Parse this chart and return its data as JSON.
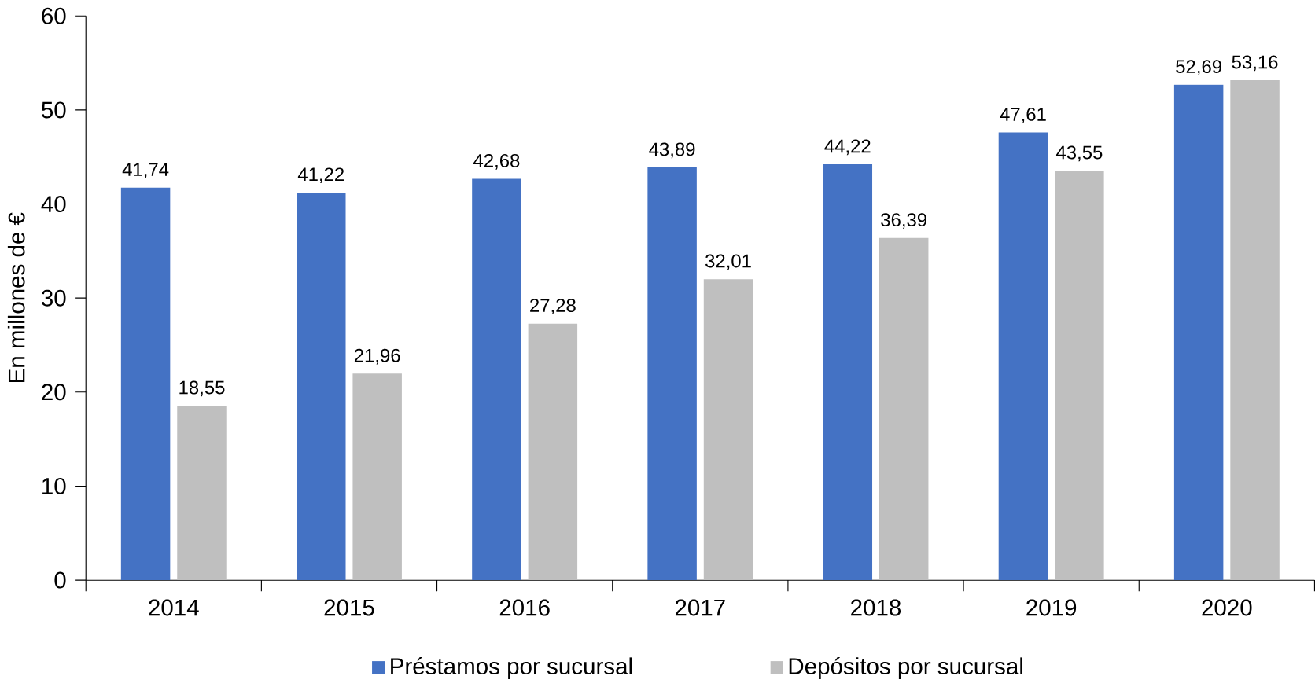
{
  "chart_data": {
    "type": "bar",
    "ylabel": "En millones de €",
    "categories": [
      "2014",
      "2015",
      "2016",
      "2017",
      "2018",
      "2019",
      "2020"
    ],
    "series": [
      {
        "name": "Préstamos por sucursal",
        "color": "#4472c4",
        "values": [
          41.74,
          41.22,
          42.68,
          43.89,
          44.22,
          47.61,
          52.69
        ],
        "value_labels": [
          "41,74",
          "41,22",
          "42,68",
          "43,89",
          "44,22",
          "47,61",
          "52,69"
        ]
      },
      {
        "name": "Depósitos por sucursal",
        "color": "#bfbfbf",
        "values": [
          18.55,
          21.96,
          27.28,
          32.01,
          36.39,
          43.55,
          53.16
        ],
        "value_labels": [
          "18,55",
          "21,96",
          "27,28",
          "32,01",
          "36,39",
          "43,55",
          "53,16"
        ]
      }
    ],
    "ylim": [
      0,
      60
    ],
    "yticks": [
      0,
      10,
      20,
      30,
      40,
      50,
      60
    ],
    "grid": false,
    "legend": "bottom"
  }
}
